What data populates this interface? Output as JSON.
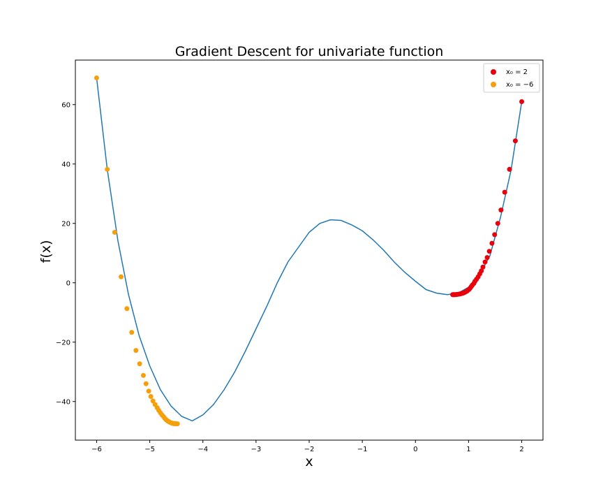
{
  "chart_data": {
    "type": "line",
    "title": "Gradient Descent for univariate function",
    "xlabel": "x",
    "ylabel": "f(x)",
    "xlim": [
      -6.4,
      2.4
    ],
    "ylim": [
      -53,
      75
    ],
    "xticks": [
      -6,
      -5,
      -4,
      -3,
      -2,
      -1,
      0,
      1,
      2
    ],
    "yticks": [
      -40,
      -20,
      0,
      20,
      40,
      60
    ],
    "grid": false,
    "legend_position": "top-right",
    "curve": {
      "color": "#1f77b4",
      "x": [
        -6.0,
        -5.8,
        -5.6,
        -5.4,
        -5.2,
        -5.0,
        -4.8,
        -4.6,
        -4.4,
        -4.2,
        -4.0,
        -3.8,
        -3.6,
        -3.4,
        -3.2,
        -3.0,
        -2.8,
        -2.6,
        -2.4,
        -2.2,
        -2.0,
        -1.8,
        -1.6,
        -1.4,
        -1.2,
        -1.0,
        -0.8,
        -0.6,
        -0.4,
        -0.2,
        0.0,
        0.2,
        0.4,
        0.6,
        0.8,
        1.0,
        1.2,
        1.4,
        1.6,
        1.8,
        2.0
      ],
      "y": [
        69.0,
        38.2,
        14.2,
        -4.0,
        -17.8,
        -28.0,
        -36.0,
        -41.5,
        -45.0,
        -46.5,
        -44.5,
        -41.0,
        -36.0,
        -30.0,
        -23.0,
        -15.5,
        -8.0,
        0.0,
        7.0,
        12.0,
        17.0,
        20.0,
        21.2,
        21.0,
        19.5,
        17.5,
        14.5,
        11.0,
        7.0,
        3.5,
        0.5,
        -2.3,
        -3.5,
        -4.0,
        -3.5,
        -1.5,
        2.5,
        9.0,
        22.0,
        38.0,
        61.0
      ]
    },
    "series": [
      {
        "name": "x₀ = 2",
        "color": "#e8000b",
        "x": [
          2.0,
          1.88,
          1.77,
          1.68,
          1.61,
          1.55,
          1.49,
          1.44,
          1.39,
          1.35,
          1.31,
          1.27,
          1.24,
          1.21,
          1.18,
          1.15,
          1.12,
          1.1,
          1.07,
          1.05,
          1.03,
          1.01,
          0.99,
          0.97,
          0.95,
          0.93,
          0.91,
          0.89,
          0.87,
          0.85,
          0.83,
          0.81,
          0.79,
          0.77,
          0.75,
          0.73,
          0.72,
          0.71,
          0.7
        ],
        "y": [
          61.0,
          47.8,
          38.2,
          30.5,
          24.5,
          20.0,
          16.2,
          13.3,
          10.6,
          8.5,
          7.0,
          5.3,
          4.0,
          3.0,
          2.0,
          1.2,
          0.5,
          -0.2,
          -0.8,
          -1.3,
          -1.8,
          -2.2,
          -2.5,
          -2.8,
          -3.0,
          -3.2,
          -3.4,
          -3.5,
          -3.6,
          -3.7,
          -3.8,
          -3.85,
          -3.9,
          -3.95,
          -4.0,
          -4.0,
          -4.0,
          -4.0,
          -4.0
        ]
      },
      {
        "name": "x₀ = −6",
        "color": "#f5a00b",
        "x": [
          -6.0,
          -5.8,
          -5.66,
          -5.54,
          -5.43,
          -5.34,
          -5.26,
          -5.19,
          -5.12,
          -5.07,
          -5.02,
          -4.98,
          -4.94,
          -4.9,
          -4.86,
          -4.83,
          -4.8,
          -4.77,
          -4.74,
          -4.72,
          -4.7,
          -4.68,
          -4.66,
          -4.64,
          -4.62,
          -4.61,
          -4.59,
          -4.58,
          -4.57,
          -4.55,
          -4.54,
          -4.53,
          -4.52,
          -4.51,
          -4.5,
          -4.49,
          -4.48
        ],
        "y": [
          69.0,
          38.2,
          17.0,
          2.0,
          -8.7,
          -16.7,
          -22.8,
          -27.3,
          -31.2,
          -34.0,
          -36.5,
          -38.3,
          -39.8,
          -41.0,
          -42.1,
          -43.0,
          -43.8,
          -44.5,
          -45.1,
          -45.6,
          -46.0,
          -46.3,
          -46.6,
          -46.8,
          -47.0,
          -47.1,
          -47.2,
          -47.3,
          -47.35,
          -47.4,
          -47.45,
          -47.5,
          -47.5,
          -47.5,
          -47.5,
          -47.5,
          -47.5
        ]
      }
    ]
  }
}
